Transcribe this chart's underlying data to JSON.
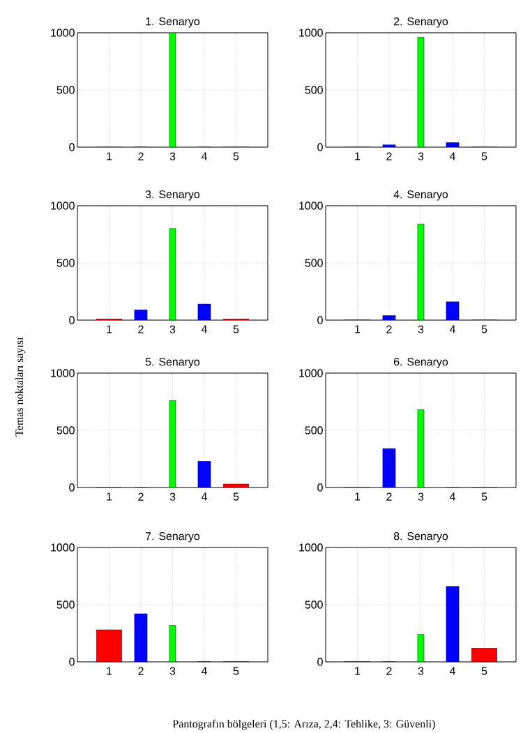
{
  "chart_data": [
    {
      "type": "bar",
      "title": "1. Senaryo",
      "x": [
        1,
        2,
        3,
        4,
        5
      ],
      "values": [
        0,
        0,
        1000,
        0,
        0
      ],
      "colors": [
        "#ff0000",
        "#0000ff",
        "#00ff00",
        "#0000ff",
        "#ff0000"
      ],
      "xlim": [
        0,
        6
      ],
      "xticks": [
        1,
        2,
        3,
        4,
        5
      ],
      "ylim": [
        0,
        1000
      ],
      "yticks": [
        0,
        500,
        1000
      ],
      "grid": true
    },
    {
      "type": "bar",
      "title": "2. Senaryo",
      "x": [
        1,
        2,
        3,
        4,
        5
      ],
      "values": [
        0,
        20,
        960,
        40,
        0
      ],
      "colors": [
        "#ff0000",
        "#0000ff",
        "#00ff00",
        "#0000ff",
        "#ff0000"
      ],
      "xlim": [
        0,
        6
      ],
      "xticks": [
        1,
        2,
        3,
        4,
        5
      ],
      "ylim": [
        0,
        1000
      ],
      "yticks": [
        0,
        500,
        1000
      ],
      "grid": true
    },
    {
      "type": "bar",
      "title": "3. Senaryo",
      "x": [
        1,
        2,
        3,
        4,
        5
      ],
      "values": [
        10,
        90,
        800,
        140,
        10
      ],
      "colors": [
        "#ff0000",
        "#0000ff",
        "#00ff00",
        "#0000ff",
        "#ff0000"
      ],
      "xlim": [
        0,
        6
      ],
      "xticks": [
        1,
        2,
        3,
        4,
        5
      ],
      "ylim": [
        0,
        1000
      ],
      "yticks": [
        0,
        500,
        1000
      ],
      "grid": true
    },
    {
      "type": "bar",
      "title": "4. Senaryo",
      "x": [
        1,
        2,
        3,
        4,
        5
      ],
      "values": [
        0,
        40,
        840,
        160,
        0
      ],
      "colors": [
        "#ff0000",
        "#0000ff",
        "#00ff00",
        "#0000ff",
        "#ff0000"
      ],
      "xlim": [
        0,
        6
      ],
      "xticks": [
        1,
        2,
        3,
        4,
        5
      ],
      "ylim": [
        0,
        1000
      ],
      "yticks": [
        0,
        500,
        1000
      ],
      "grid": true
    },
    {
      "type": "bar",
      "title": "5. Senaryo",
      "ylabel": "Temas noktaları sayısı",
      "x": [
        1,
        2,
        3,
        4,
        5
      ],
      "values": [
        0,
        0,
        760,
        230,
        30
      ],
      "colors": [
        "#ff0000",
        "#0000ff",
        "#00ff00",
        "#0000ff",
        "#ff0000"
      ],
      "xlim": [
        0,
        6
      ],
      "xticks": [
        1,
        2,
        3,
        4,
        5
      ],
      "ylim": [
        0,
        1000
      ],
      "yticks": [
        0,
        500,
        1000
      ],
      "grid": true
    },
    {
      "type": "bar",
      "title": "6. Senaryo",
      "x": [
        1,
        2,
        3,
        4,
        5
      ],
      "values": [
        0,
        340,
        680,
        0,
        0
      ],
      "colors": [
        "#ff0000",
        "#0000ff",
        "#00ff00",
        "#0000ff",
        "#ff0000"
      ],
      "xlim": [
        0,
        6
      ],
      "xticks": [
        1,
        2,
        3,
        4,
        5
      ],
      "ylim": [
        0,
        1000
      ],
      "yticks": [
        0,
        500,
        1000
      ],
      "grid": true
    },
    {
      "type": "bar",
      "title": "7. Senaryo",
      "xlabel": "Pantografın bölgeleri (1,5: Arıza, 2,4: Tehlike, 3: Güvenli)",
      "x": [
        1,
        2,
        3,
        4,
        5
      ],
      "values": [
        280,
        420,
        320,
        0,
        0
      ],
      "colors": [
        "#ff0000",
        "#0000ff",
        "#00ff00",
        "#0000ff",
        "#ff0000"
      ],
      "xlim": [
        0,
        6
      ],
      "xticks": [
        1,
        2,
        3,
        4,
        5
      ],
      "ylim": [
        0,
        1000
      ],
      "yticks": [
        0,
        500,
        1000
      ],
      "grid": true
    },
    {
      "type": "bar",
      "title": "8. Senaryo",
      "x": [
        1,
        2,
        3,
        4,
        5
      ],
      "values": [
        0,
        0,
        240,
        660,
        120
      ],
      "colors": [
        "#ff0000",
        "#0000ff",
        "#00ff00",
        "#0000ff",
        "#ff0000"
      ],
      "xlim": [
        0,
        6
      ],
      "xticks": [
        1,
        2,
        3,
        4,
        5
      ],
      "ylim": [
        0,
        1000
      ],
      "yticks": [
        0,
        500,
        1000
      ],
      "grid": true
    }
  ]
}
